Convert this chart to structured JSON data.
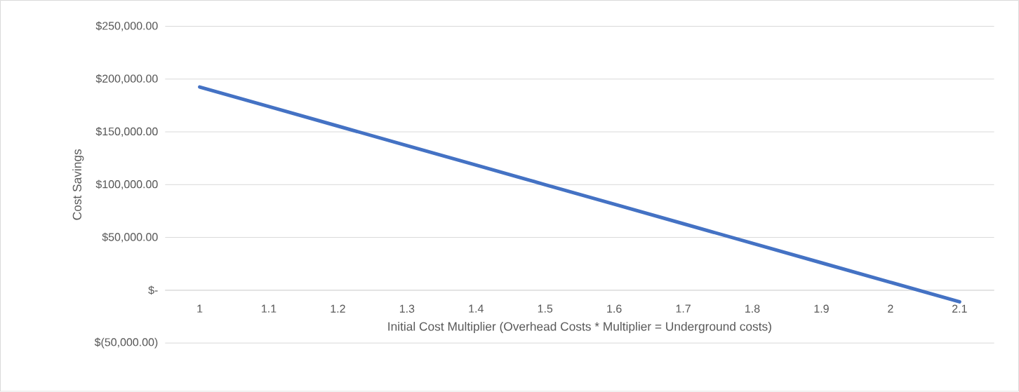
{
  "chart_data": {
    "type": "line",
    "xlabel": "Initial Cost Multiplier (Overhead Costs * Multiplier = Underground costs)",
    "ylabel": "Cost Savings",
    "categories": [
      "1",
      "1.1",
      "1.2",
      "1.3",
      "1.4",
      "1.5",
      "1.6",
      "1.7",
      "1.8",
      "1.9",
      "2",
      "2.1"
    ],
    "values": [
      192500,
      174000,
      155500,
      137000,
      118500,
      100000,
      81500,
      63000,
      44500,
      26000,
      7500,
      -11000
    ],
    "color": "#4472c4",
    "ylim": [
      -50000,
      250000
    ],
    "yticks": [
      {
        "value": -50000,
        "label": "$(50,000.00)"
      },
      {
        "value": 0,
        "label": "$-"
      },
      {
        "value": 50000,
        "label": "$50,000.00"
      },
      {
        "value": 100000,
        "label": "$100,000.00"
      },
      {
        "value": 150000,
        "label": "$150,000.00"
      },
      {
        "value": 200000,
        "label": "$200,000.00"
      },
      {
        "value": 250000,
        "label": "$250,000.00"
      }
    ],
    "grid": "y"
  }
}
